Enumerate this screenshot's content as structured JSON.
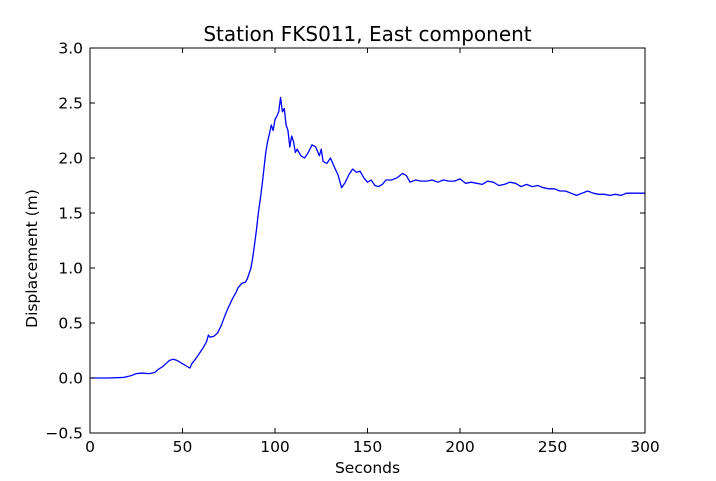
{
  "chart_data": {
    "type": "line",
    "title": "Station FKS011, East component",
    "xlabel": "Seconds",
    "ylabel": "Displacement (m)",
    "xlim": [
      0,
      300
    ],
    "ylim": [
      -0.5,
      3.0
    ],
    "xticks": [
      0,
      50,
      100,
      150,
      200,
      250,
      300
    ],
    "yticks": [
      -0.5,
      0.0,
      0.5,
      1.0,
      1.5,
      2.0,
      2.5,
      3.0
    ],
    "xtick_labels": [
      "0",
      "50",
      "100",
      "150",
      "200",
      "250",
      "300"
    ],
    "ytick_labels": [
      "−0.5",
      "0.0",
      "0.5",
      "1.0",
      "1.5",
      "2.0",
      "2.5",
      "3.0"
    ],
    "grid": false,
    "legend": "none",
    "series": [
      {
        "color": "#0000ff",
        "x": [
          0,
          10,
          18,
          22,
          25,
          28,
          32,
          35,
          37,
          39,
          41,
          43,
          45,
          47,
          49,
          51,
          53,
          54,
          55,
          57,
          59,
          61,
          63,
          64,
          65,
          67,
          69,
          71,
          73,
          75,
          77,
          79,
          80,
          82,
          84,
          85,
          86,
          87,
          88,
          89,
          90,
          91,
          92,
          93,
          94,
          95,
          96,
          97,
          98,
          99,
          100,
          101,
          102,
          103,
          104,
          105,
          106,
          107,
          108,
          109,
          110,
          111,
          112,
          113,
          114,
          116,
          118,
          120,
          122,
          124,
          125,
          126,
          128,
          130,
          132,
          134,
          136,
          138,
          140,
          142,
          144,
          146,
          148,
          150,
          152,
          154,
          156,
          158,
          160,
          163,
          166,
          169,
          171,
          173,
          176,
          179,
          182,
          185,
          188,
          191,
          194,
          197,
          200,
          203,
          206,
          209,
          212,
          215,
          218,
          221,
          224,
          227,
          230,
          233,
          236,
          239,
          242,
          245,
          248,
          251,
          254,
          257,
          260,
          263,
          266,
          269,
          272,
          275,
          278,
          281,
          284,
          287,
          290,
          293,
          296,
          300
        ],
        "y": [
          0.0,
          0.0,
          0.005,
          0.02,
          0.04,
          0.045,
          0.04,
          0.05,
          0.08,
          0.1,
          0.13,
          0.16,
          0.17,
          0.16,
          0.14,
          0.12,
          0.1,
          0.09,
          0.13,
          0.17,
          0.22,
          0.27,
          0.33,
          0.39,
          0.37,
          0.38,
          0.41,
          0.48,
          0.57,
          0.65,
          0.72,
          0.78,
          0.82,
          0.86,
          0.87,
          0.9,
          0.95,
          1.0,
          1.1,
          1.22,
          1.35,
          1.5,
          1.62,
          1.75,
          1.9,
          2.05,
          2.15,
          2.22,
          2.3,
          2.25,
          2.35,
          2.38,
          2.42,
          2.55,
          2.42,
          2.45,
          2.3,
          2.25,
          2.1,
          2.2,
          2.15,
          2.05,
          2.08,
          2.05,
          2.02,
          2.0,
          2.05,
          2.12,
          2.1,
          2.02,
          2.08,
          1.97,
          1.95,
          2.0,
          1.92,
          1.85,
          1.73,
          1.78,
          1.85,
          1.9,
          1.87,
          1.88,
          1.82,
          1.78,
          1.8,
          1.75,
          1.74,
          1.76,
          1.8,
          1.8,
          1.82,
          1.86,
          1.84,
          1.78,
          1.8,
          1.79,
          1.79,
          1.8,
          1.78,
          1.8,
          1.79,
          1.79,
          1.81,
          1.77,
          1.78,
          1.77,
          1.76,
          1.79,
          1.78,
          1.75,
          1.76,
          1.78,
          1.77,
          1.74,
          1.76,
          1.74,
          1.75,
          1.73,
          1.72,
          1.72,
          1.7,
          1.7,
          1.68,
          1.66,
          1.68,
          1.7,
          1.68,
          1.67,
          1.67,
          1.66,
          1.67,
          1.66,
          1.68,
          1.68,
          1.68,
          1.68
        ]
      }
    ]
  }
}
